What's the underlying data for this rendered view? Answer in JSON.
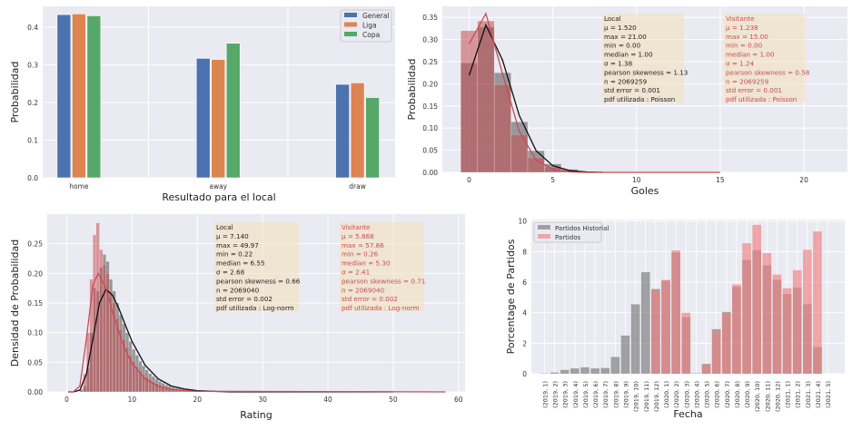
{
  "chart_data": [
    {
      "type": "bar",
      "xlabel": "Resultado para el local",
      "ylabel": "Probabilidad",
      "categories": [
        "home",
        "away",
        "draw"
      ],
      "series": [
        {
          "name": "General",
          "color": "#4c72b0",
          "values": [
            0.433,
            0.317,
            0.248
          ]
        },
        {
          "name": "Liga",
          "color": "#dd8452",
          "values": [
            0.435,
            0.314,
            0.252
          ]
        },
        {
          "name": "Copa",
          "color": "#55a868",
          "values": [
            0.43,
            0.357,
            0.213
          ]
        }
      ],
      "ylim": [
        0,
        0.455
      ],
      "yticks": [
        "0.0",
        "0.1",
        "0.2",
        "0.3",
        "0.4"
      ],
      "grid": true,
      "legend": "top-right"
    },
    {
      "type": "bar",
      "xlabel": "Goles",
      "ylabel": "Probabilidad",
      "xlim": [
        -1.6,
        22.6
      ],
      "ylim": [
        0,
        0.375
      ],
      "xticks": [
        "0",
        "5",
        "10",
        "15",
        "20"
      ],
      "yticks": [
        "0.00",
        "0.05",
        "0.10",
        "0.15",
        "0.20",
        "0.25",
        "0.30",
        "0.35"
      ],
      "grid": true,
      "histograms": [
        {
          "group": "Local",
          "color": "#555555",
          "bins_start": 0,
          "values": [
            0.247,
            0.328,
            0.225,
            0.114,
            0.049,
            0.019,
            0.007,
            0.002,
            0.001
          ]
        },
        {
          "group": "Visitante",
          "color": "#c44e52",
          "bins_start": 0,
          "values": [
            0.32,
            0.342,
            0.198,
            0.085,
            0.033,
            0.012,
            0.004,
            0.001,
            0.0005
          ]
        }
      ],
      "curves": [
        {
          "group": "Local",
          "color": "#111111",
          "x": [
            0,
            1,
            2,
            3,
            4,
            5,
            6,
            7,
            8
          ],
          "y": [
            0.219,
            0.333,
            0.253,
            0.128,
            0.049,
            0.015,
            0.004,
            0.001,
            0.0
          ]
        },
        {
          "group": "Visitante",
          "color": "#c44e52",
          "x": [
            0,
            1,
            2,
            3,
            4,
            5,
            6,
            7,
            8,
            15
          ],
          "y": [
            0.29,
            0.359,
            0.222,
            0.092,
            0.028,
            0.007,
            0.001,
            0.0,
            0.0,
            0.0
          ]
        }
      ],
      "stats": [
        {
          "color": "#222222",
          "lines": [
            "Local",
            "μ = 1.520",
            "max = 21.00",
            "min = 0.00",
            "median = 1.00",
            "σ = 1.38",
            "pearson skewness = 1.13",
            "n = 2069259",
            "std error = 0.001",
            "pdf utilizada :  Poisson"
          ]
        },
        {
          "color": "#c44e52",
          "lines": [
            "Visitante",
            "μ = 1.238",
            "max = 15.00",
            "min = 0.00",
            "median = 1.00",
            "σ = 1.24",
            "pearson skewness = 0.58",
            "n = 2069259",
            "std error = 0.001",
            "pdf utilizada :  Poisson"
          ]
        }
      ]
    },
    {
      "type": "bar",
      "xlabel": "Rating",
      "ylabel": "Densidad de Probabilidad",
      "xlim": [
        -3,
        61
      ],
      "ylim": [
        0,
        0.3
      ],
      "xticks": [
        "0",
        "10",
        "20",
        "30",
        "40",
        "50",
        "60"
      ],
      "yticks": [
        "0.00",
        "0.05",
        "0.10",
        "0.15",
        "0.20",
        "0.25"
      ],
      "grid": true,
      "histograms": [
        {
          "group": "Local",
          "color": "#555555",
          "bins_start": 2.0,
          "bin_width": 0.5,
          "values": [
            0.002,
            0.01,
            0.04,
            0.1,
            0.175,
            0.17,
            0.21,
            0.232,
            0.22,
            0.19,
            0.17,
            0.15,
            0.13,
            0.115,
            0.1,
            0.085,
            0.072,
            0.062,
            0.052,
            0.044,
            0.037,
            0.031,
            0.026,
            0.022,
            0.018,
            0.015,
            0.012,
            0.01,
            0.008,
            0.007,
            0.006,
            0.005,
            0.004,
            0.003,
            0.003,
            0.002,
            0.002
          ]
        },
        {
          "group": "Visitante",
          "color": "#c44e52",
          "bins_start": 2.0,
          "bin_width": 0.5,
          "values": [
            0.005,
            0.03,
            0.1,
            0.19,
            0.265,
            0.285,
            0.24,
            0.215,
            0.2,
            0.17,
            0.15,
            0.125,
            0.105,
            0.088,
            0.075,
            0.062,
            0.052,
            0.043,
            0.036,
            0.03,
            0.025,
            0.021,
            0.017,
            0.014,
            0.012,
            0.01,
            0.008,
            0.007,
            0.006,
            0.005,
            0.004,
            0.003,
            0.003,
            0.002,
            0.002,
            0.001,
            0.001
          ]
        }
      ],
      "curves": [
        {
          "group": "Local",
          "color": "#111111",
          "x": [
            0.2,
            1,
            2,
            3,
            4,
            5,
            6,
            7,
            8,
            9,
            10,
            12,
            14,
            16,
            18,
            20,
            25,
            50
          ],
          "y": [
            0,
            0,
            0.003,
            0.03,
            0.09,
            0.15,
            0.173,
            0.163,
            0.14,
            0.112,
            0.085,
            0.045,
            0.022,
            0.01,
            0.005,
            0.002,
            0,
            0
          ]
        },
        {
          "group": "Visitante",
          "color": "#c44e52",
          "x": [
            0.2,
            1,
            2,
            3,
            4,
            4.8,
            6,
            7,
            8,
            9,
            10,
            12,
            14,
            16,
            20,
            58
          ],
          "y": [
            0,
            0,
            0.01,
            0.09,
            0.18,
            0.2,
            0.175,
            0.135,
            0.1,
            0.07,
            0.048,
            0.022,
            0.01,
            0.004,
            0.001,
            0
          ]
        }
      ],
      "stats": [
        {
          "color": "#222222",
          "lines": [
            "Local",
            "μ = 7.140",
            "max = 49.97",
            "min = 0.22",
            "median = 6.55",
            "σ = 2.68",
            "pearson skewness = 0.66",
            "n = 2069040",
            "std error = 0.002",
            "pdf utilizada :  Log-norm"
          ]
        },
        {
          "color": "#c44e52",
          "lines": [
            "Visitante",
            "μ = 5.868",
            "max = 57.86",
            "min = 0.26",
            "median = 5.30",
            "σ = 2.41",
            "pearson skewness = 0.71",
            "n = 2069040",
            "std error = 0.002",
            "pdf utilizada :  Log-norm"
          ]
        }
      ]
    },
    {
      "type": "bar",
      "xlabel": "Fecha",
      "ylabel": "Porcentage de Partidos",
      "ylim": [
        0,
        10.1
      ],
      "yticks": [
        "0",
        "2",
        "4",
        "6",
        "8",
        "10"
      ],
      "grid": true,
      "legend": "top-left",
      "categories": [
        "(2019, 1)",
        "(2019, 2)",
        "(2019, 3)",
        "(2019, 4)",
        "(2019, 5)",
        "(2019, 6)",
        "(2019, 7)",
        "(2019, 8)",
        "(2019, 9)",
        "(2019, 10)",
        "(2019, 11)",
        "(2019, 12)",
        "(2020, 1)",
        "(2020, 2)",
        "(2020, 3)",
        "(2020, 4)",
        "(2020, 5)",
        "(2020, 6)",
        "(2020, 7)",
        "(2020, 8)",
        "(2020, 9)",
        "(2020, 10)",
        "(2020, 11)",
        "(2020, 12)",
        "(2021, 1)",
        "(2021, 2)",
        "(2021, 3)",
        "(2021, 4)",
        "(2021, 5)"
      ],
      "series": [
        {
          "name": "Partidos Historial",
          "color": "#808080",
          "values": [
            0.02,
            0.08,
            0.25,
            0.35,
            0.42,
            0.35,
            0.38,
            1.1,
            2.5,
            4.55,
            6.65,
            5.55,
            6.1,
            7.95,
            3.7,
            0.03,
            0.65,
            2.92,
            4.05,
            5.7,
            7.45,
            8.1,
            7.1,
            6.15,
            5.22,
            5.65,
            4.55,
            1.75,
            0
          ]
        },
        {
          "name": "Partidos",
          "color": "#f08080",
          "values": [
            0,
            0,
            0,
            0,
            0,
            0,
            0,
            0,
            0,
            0,
            0,
            5.45,
            6.15,
            8.08,
            4.0,
            0.02,
            0.6,
            2.8,
            3.92,
            5.85,
            8.55,
            9.75,
            7.9,
            6.5,
            5.6,
            6.78,
            8.12,
            9.32,
            0
          ]
        }
      ]
    }
  ]
}
